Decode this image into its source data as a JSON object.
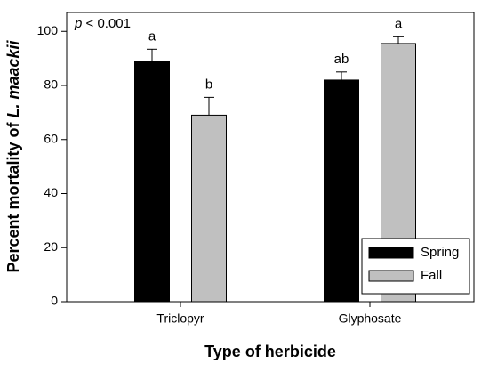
{
  "chart_data": {
    "type": "bar",
    "annotation": {
      "italic": "p",
      "text": "< 0.001"
    },
    "xlabel": "Type of herbicide",
    "ylabel": {
      "text": "Percent mortality of",
      "italic": "L. maackii"
    },
    "categories": [
      "Triclopyr",
      "Glyphosate"
    ],
    "series": [
      {
        "name": "Spring",
        "color": "#000000",
        "values": [
          89,
          82
        ],
        "errors": [
          4.4,
          3
        ],
        "letters": [
          "a",
          "ab"
        ]
      },
      {
        "name": "Fall",
        "color": "#c0c0c0",
        "values": [
          69,
          95.5
        ],
        "errors": [
          6.6,
          2.5
        ],
        "letters": [
          "b",
          "a"
        ]
      }
    ],
    "ylim": [
      0,
      107
    ],
    "yticks": [
      0,
      20,
      40,
      60,
      80,
      100
    ],
    "legend": "lower right"
  }
}
